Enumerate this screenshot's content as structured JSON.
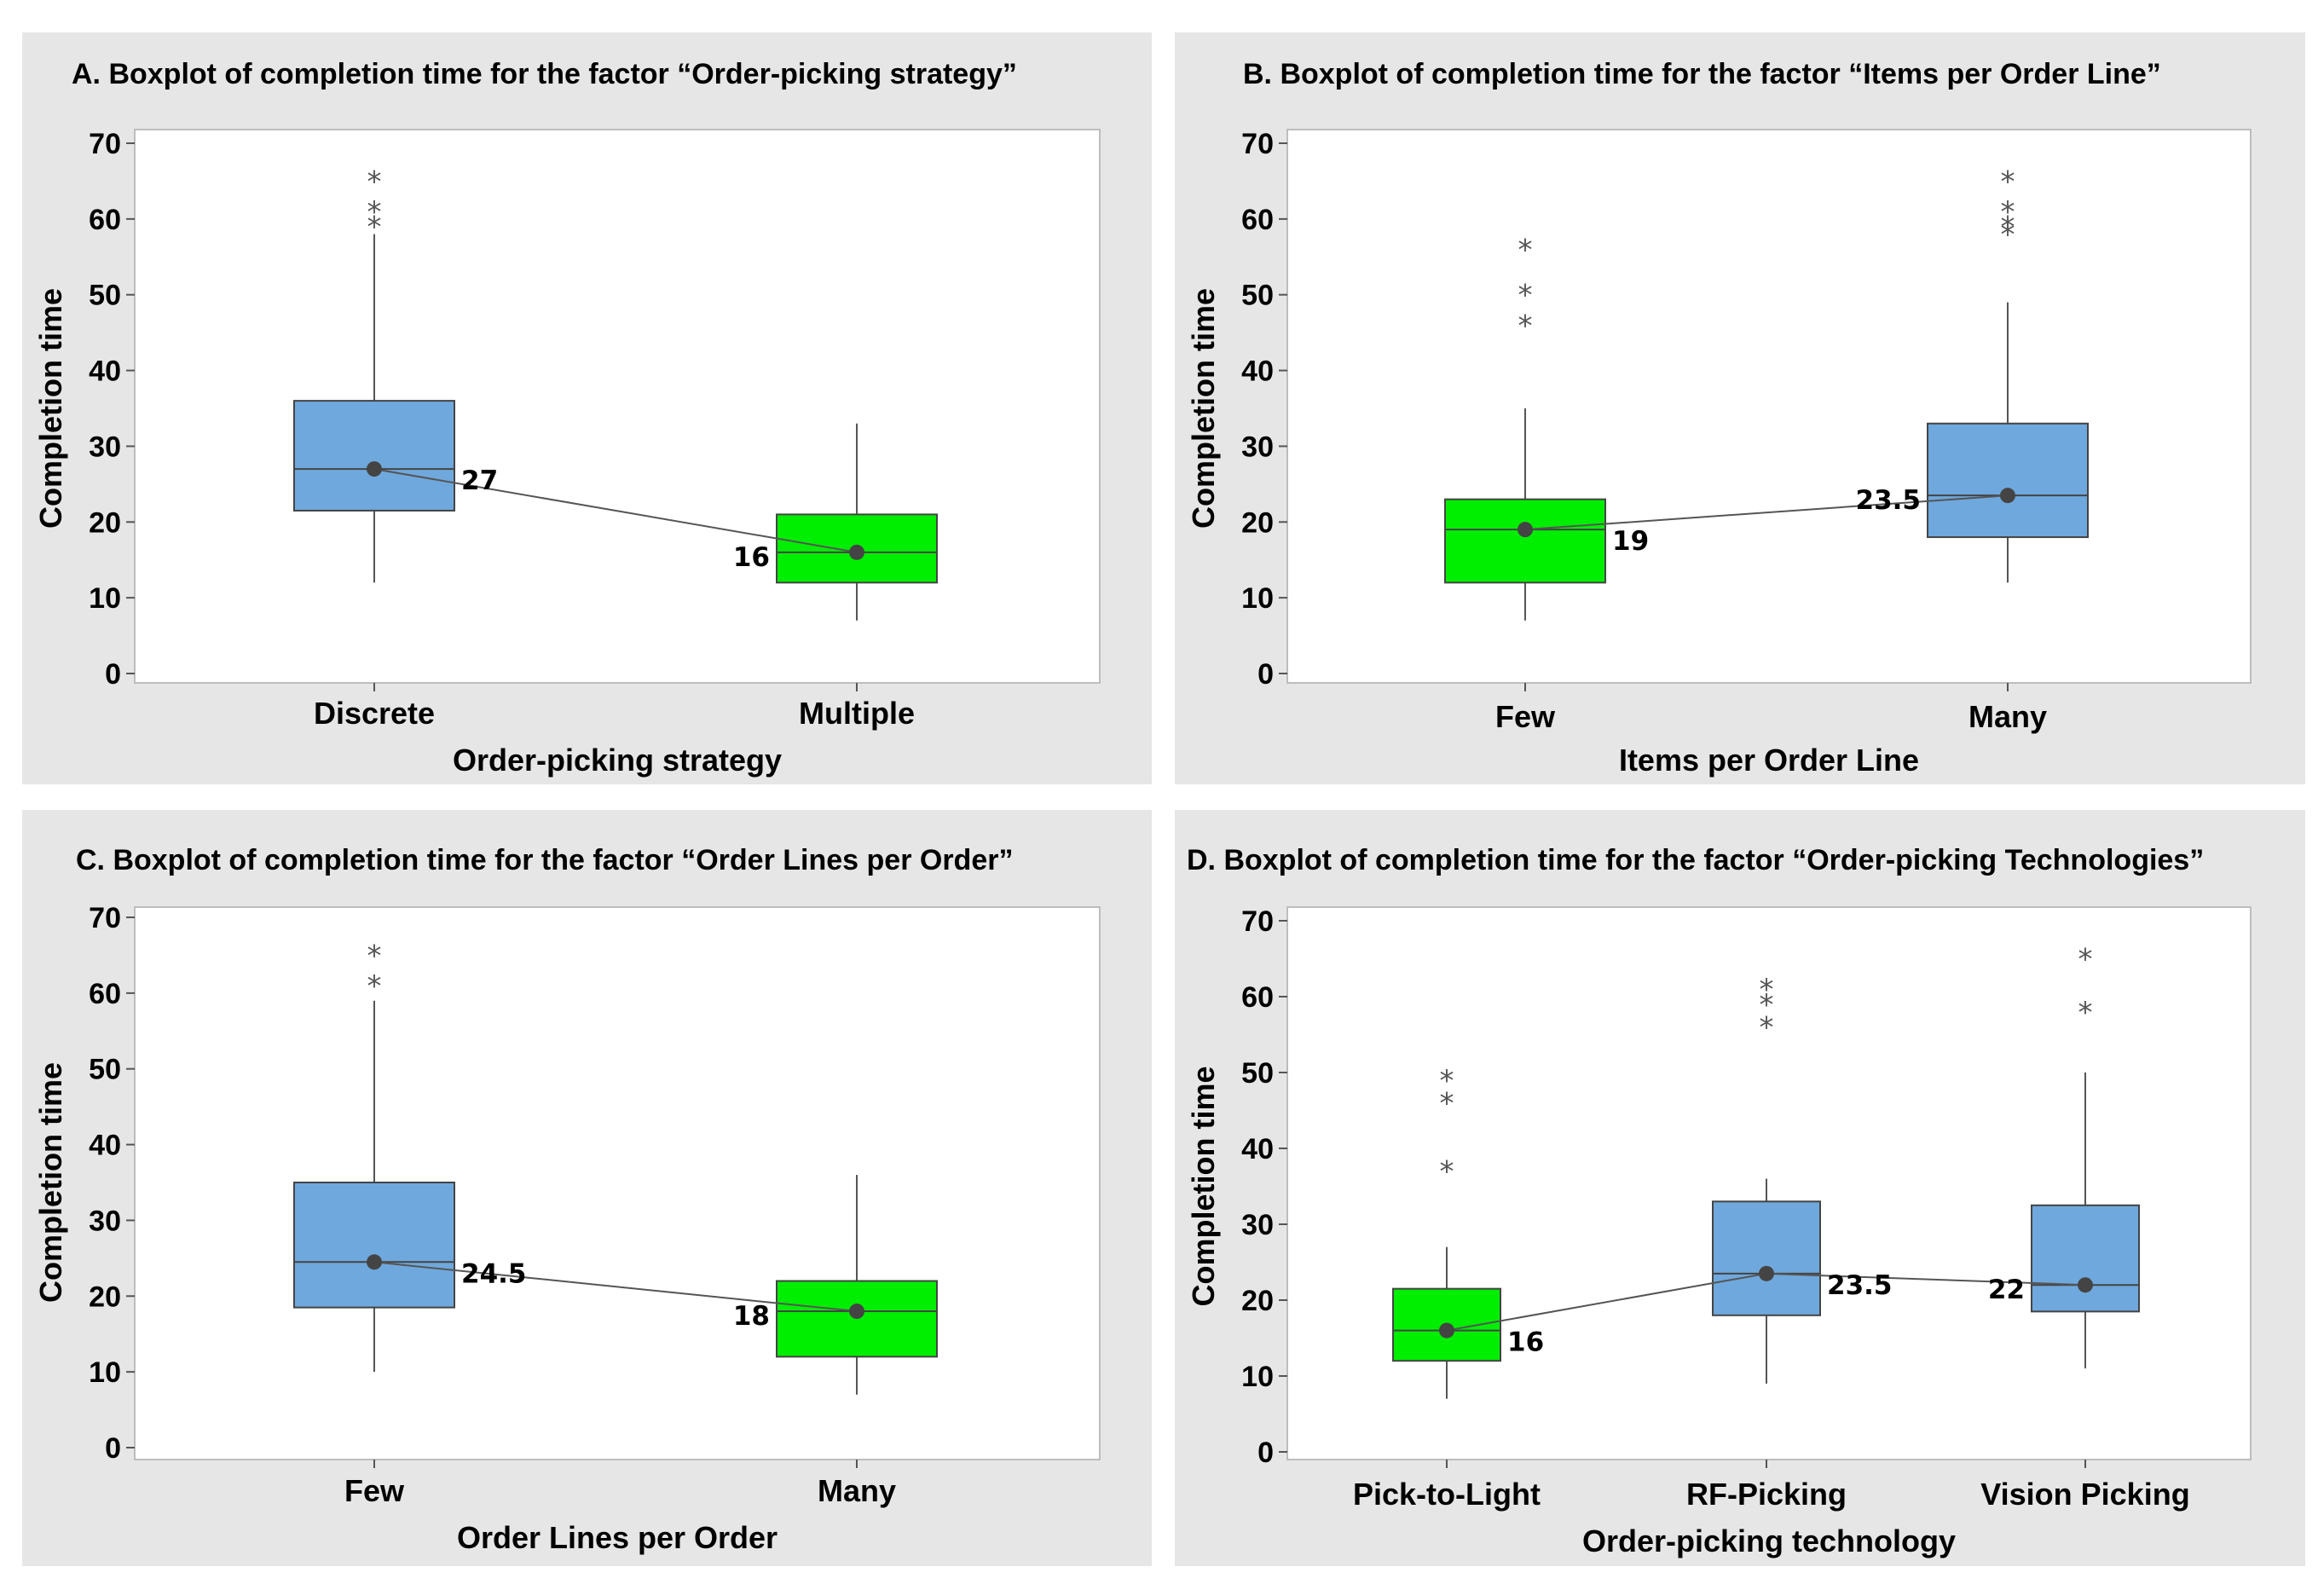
{
  "chart_data": [
    {
      "type": "boxplot",
      "title": "A. Boxplot of completion time for the factor “Order-picking strategy”",
      "xlabel": "Order-picking strategy",
      "ylabel": "Completion time",
      "ylim": [
        0,
        70
      ],
      "yticks": [
        0,
        10,
        20,
        30,
        40,
        50,
        60,
        70
      ],
      "categories": [
        "Discrete",
        "Multiple"
      ],
      "boxes": [
        {
          "label": "Discrete",
          "whisker_low": 12,
          "q1": 21.5,
          "median": 27,
          "q3": 36,
          "whisker_high": 58,
          "mean": 27,
          "outliers": [
            59,
            61,
            65
          ],
          "color": "#6fa8dc",
          "value_label": "27",
          "label_side": "right"
        },
        {
          "label": "Multiple",
          "whisker_low": 7,
          "q1": 12,
          "median": 16,
          "q3": 21,
          "whisker_high": 33,
          "mean": 16,
          "outliers": [],
          "color": "#00ee00",
          "value_label": "16",
          "label_side": "left"
        }
      ]
    },
    {
      "type": "boxplot",
      "title": "B. Boxplot of completion time for the factor “Items per Order Line”",
      "xlabel": "Items per Order Line",
      "ylabel": "Completion time",
      "ylim": [
        0,
        70
      ],
      "yticks": [
        0,
        10,
        20,
        30,
        40,
        50,
        60,
        70
      ],
      "categories": [
        "Few",
        "Many"
      ],
      "boxes": [
        {
          "label": "Few",
          "whisker_low": 7,
          "q1": 12,
          "median": 19,
          "q3": 23,
          "whisker_high": 35,
          "mean": 19,
          "outliers": [
            46,
            50,
            56
          ],
          "color": "#00ee00",
          "value_label": "19",
          "label_side": "right"
        },
        {
          "label": "Many",
          "whisker_low": 12,
          "q1": 18,
          "median": 23.5,
          "q3": 33,
          "whisker_high": 49,
          "mean": 23.5,
          "outliers": [
            58,
            59,
            61,
            65
          ],
          "color": "#6fa8dc",
          "value_label": "23.5",
          "label_side": "left"
        }
      ]
    },
    {
      "type": "boxplot",
      "title": "C. Boxplot of completion time for the factor “Order Lines per Order”",
      "xlabel": "Order Lines per Order",
      "ylabel": "Completion time",
      "ylim": [
        0,
        70
      ],
      "yticks": [
        0,
        10,
        20,
        30,
        40,
        50,
        60,
        70
      ],
      "categories": [
        "Few",
        "Many"
      ],
      "boxes": [
        {
          "label": "Few",
          "whisker_low": 10,
          "q1": 18.5,
          "median": 24.5,
          "q3": 35,
          "whisker_high": 59,
          "mean": 24.5,
          "outliers": [
            61,
            65
          ],
          "color": "#6fa8dc",
          "value_label": "24.5",
          "label_side": "right"
        },
        {
          "label": "Many",
          "whisker_low": 7,
          "q1": 12,
          "median": 18,
          "q3": 22,
          "whisker_high": 36,
          "mean": 18,
          "outliers": [],
          "color": "#00ee00",
          "value_label": "18",
          "label_side": "left"
        }
      ]
    },
    {
      "type": "boxplot",
      "title": "D. Boxplot of completion time for the factor “Order-picking Technologies”",
      "xlabel": "Order-picking technology",
      "ylabel": "Completion time",
      "ylim": [
        0,
        70
      ],
      "yticks": [
        0,
        10,
        20,
        30,
        40,
        50,
        60,
        70
      ],
      "categories": [
        "Pick-to-Light",
        "RF-Picking",
        "Vision Picking"
      ],
      "boxes": [
        {
          "label": "Pick-to-Light",
          "whisker_low": 7,
          "q1": 12,
          "median": 16,
          "q3": 21.5,
          "whisker_high": 27,
          "mean": 16,
          "outliers": [
            37,
            46,
            49
          ],
          "color": "#00ee00",
          "value_label": "16",
          "label_side": "right"
        },
        {
          "label": "RF-Picking",
          "whisker_low": 9,
          "q1": 18,
          "median": 23.5,
          "q3": 33,
          "whisker_high": 36,
          "mean": 23.5,
          "outliers": [
            56,
            59,
            61
          ],
          "color": "#6fa8dc",
          "value_label": "23.5",
          "label_side": "right"
        },
        {
          "label": "Vision Picking",
          "whisker_low": 11,
          "q1": 18.5,
          "median": 22,
          "q3": 32.5,
          "whisker_high": 50,
          "mean": 22,
          "outliers": [
            58,
            65
          ],
          "color": "#6fa8dc",
          "value_label": "22",
          "label_side": "left"
        }
      ]
    }
  ]
}
